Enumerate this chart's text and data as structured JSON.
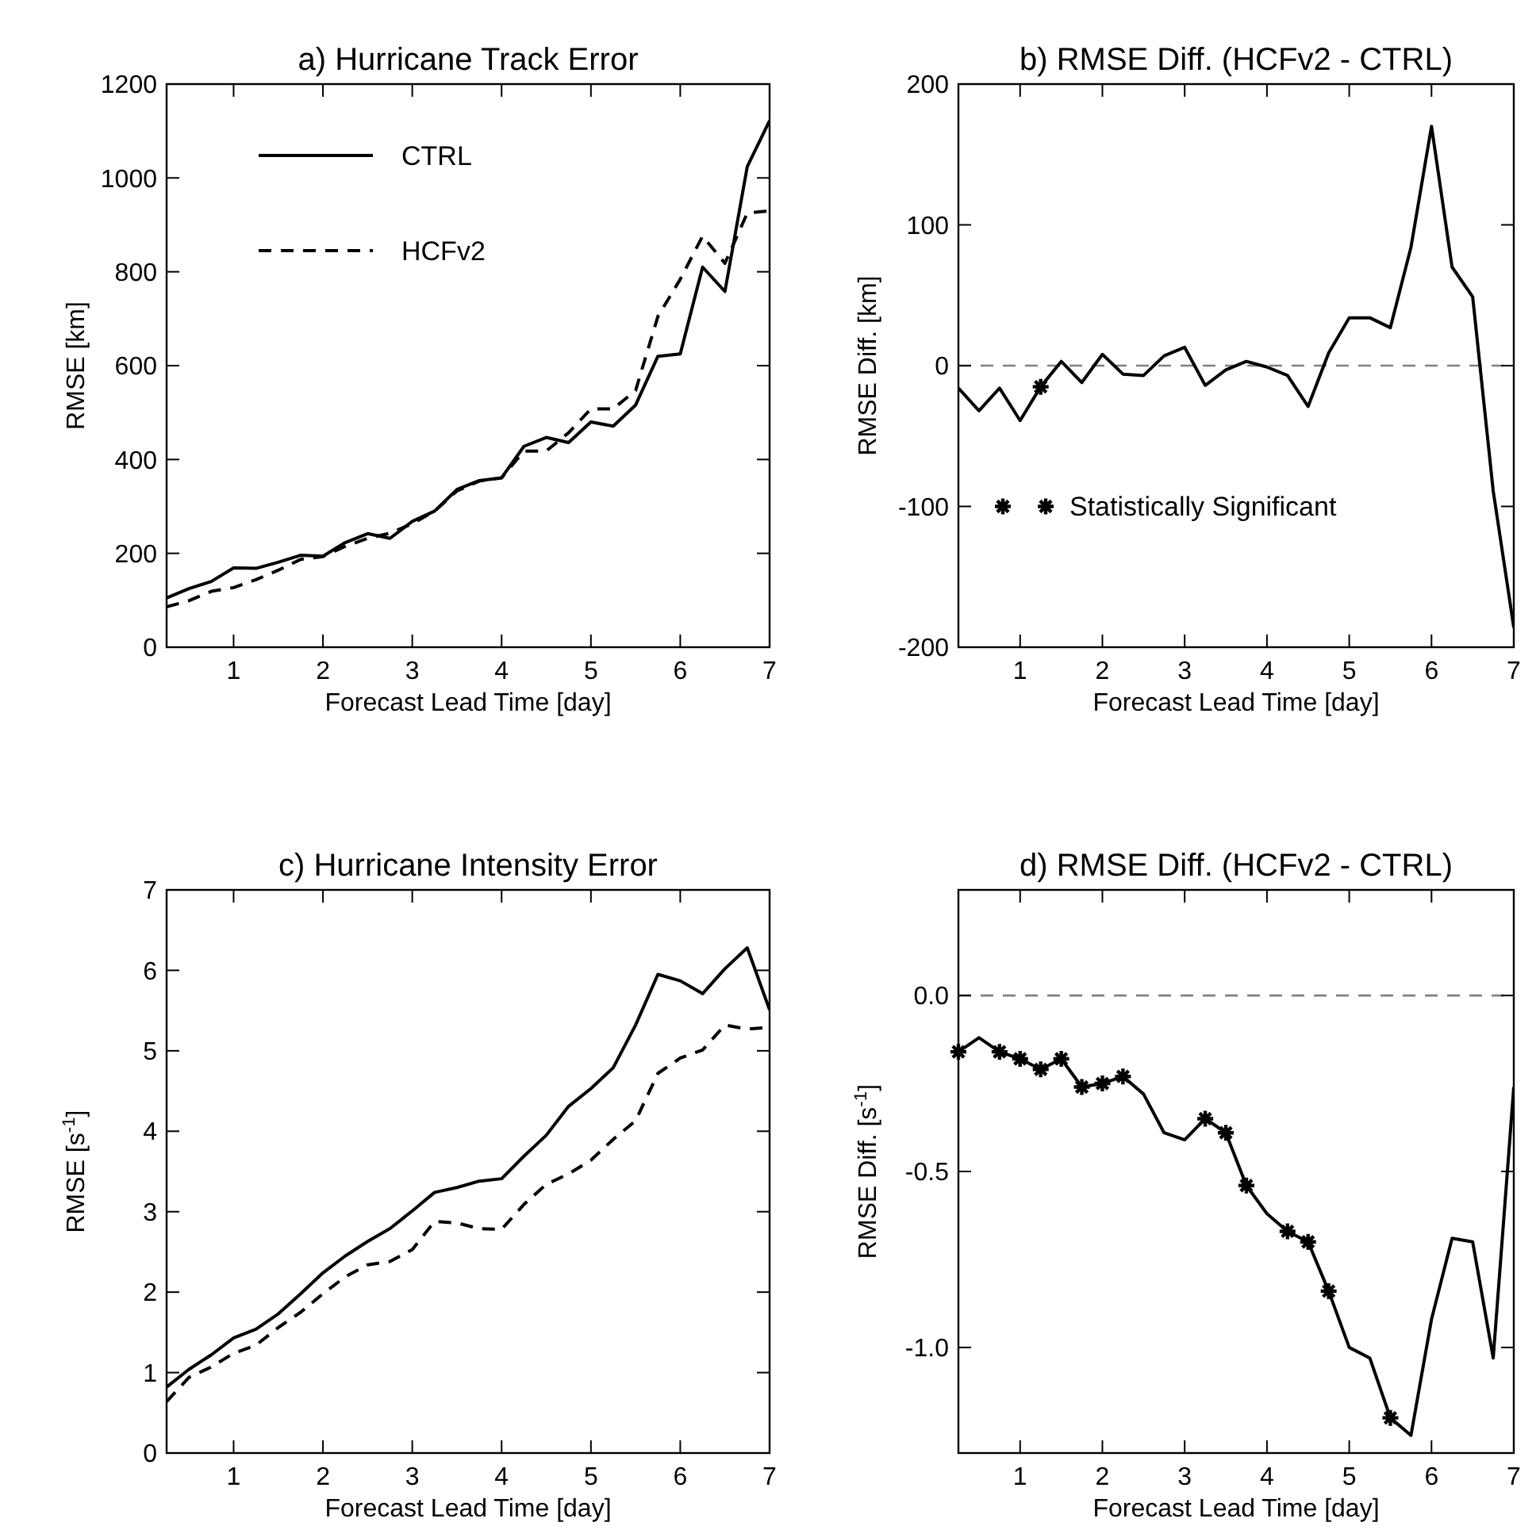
{
  "chart_data": [
    {
      "type": "line",
      "title": "a) Hurricane Track Error",
      "xlabel": "Forecast Lead Time [day]",
      "ylabel": "RMSE [km]",
      "xlim": [
        0.25,
        7
      ],
      "xticks": [
        1,
        2,
        3,
        4,
        5,
        6,
        7
      ],
      "ylim": [
        0,
        1200
      ],
      "yticks": [
        0,
        200,
        400,
        600,
        800,
        1000,
        1200
      ],
      "legend": "top left",
      "x": [
        0.25,
        0.5,
        0.75,
        1,
        1.25,
        1.5,
        1.75,
        2,
        2.25,
        2.5,
        2.75,
        3,
        3.25,
        3.5,
        3.75,
        4,
        4.25,
        4.5,
        4.75,
        5,
        5.25,
        5.5,
        5.75,
        6,
        6.25,
        6.5,
        6.75,
        7
      ],
      "series": [
        {
          "name": "CTRL",
          "color": "#000000",
          "line_style": "solid",
          "values": [
            105,
            125,
            140,
            169,
            168,
            181,
            196,
            194,
            223,
            242,
            232,
            268,
            290,
            336,
            355,
            361,
            428,
            447,
            436,
            480,
            471,
            516,
            620,
            625,
            810,
            758,
            1024,
            1122
          ]
        },
        {
          "name": "HCFv2",
          "color": "#000000",
          "line_style": "dashed",
          "values": [
            86,
            99,
            119,
            127,
            144,
            164,
            187,
            193,
            215,
            232,
            243,
            263,
            290,
            333,
            354,
            361,
            418,
            418,
            457,
            508,
            508,
            547,
            705,
            784,
            876,
            818,
            925,
            930
          ]
        }
      ]
    },
    {
      "type": "line",
      "title": "b) RMSE Diff. (HCFv2 - CTRL)",
      "xlabel": "Forecast Lead Time [day]",
      "ylabel": "RMSE Diff.  [km]",
      "xlim": [
        0.25,
        7
      ],
      "xticks": [
        1,
        2,
        3,
        4,
        5,
        6,
        7
      ],
      "ylim": [
        -200,
        200
      ],
      "yticks": [
        -200,
        -100,
        0,
        100,
        200
      ],
      "legend": "bottom left",
      "x": [
        0.25,
        0.5,
        0.75,
        1,
        1.25,
        1.5,
        1.75,
        2,
        2.25,
        2.5,
        2.75,
        3,
        3.25,
        3.5,
        3.75,
        4,
        4.25,
        4.5,
        4.75,
        5,
        5.25,
        5.5,
        5.75,
        6,
        6.25,
        6.5,
        6.75,
        7
      ],
      "ref_lines": [
        {
          "axis": "y",
          "value": 0,
          "color": "#808080",
          "line_style": "dashed"
        }
      ],
      "series": [
        {
          "color": "#000000",
          "line_style": "solid",
          "values": [
            -16,
            -32,
            -16,
            -39,
            -15,
            3,
            -12,
            8,
            -6,
            -7,
            7,
            13,
            -14,
            -3,
            3,
            -1,
            -7,
            -29,
            9,
            34,
            34,
            27,
            84,
            170,
            70,
            49,
            -89,
            -186
          ]
        },
        {
          "name": "Statistically Significant",
          "type": "scatter",
          "marker": "cross",
          "color": "#000000",
          "x": [
            1.25
          ],
          "values": [
            -15
          ]
        }
      ]
    },
    {
      "type": "line",
      "title": "c) Hurricane Intensity Error",
      "xlabel": "Forecast Lead Time [day]",
      "ylabel": "RMSE [s$^{-1}$]",
      "xlim": [
        0.25,
        7
      ],
      "xticks": [
        1,
        2,
        3,
        4,
        5,
        6,
        7
      ],
      "ylim": [
        0,
        7
      ],
      "yticks": [
        0,
        1,
        2,
        3,
        4,
        5,
        6,
        7
      ],
      "x": [
        0.25,
        0.5,
        0.75,
        1,
        1.25,
        1.5,
        1.75,
        2,
        2.25,
        2.5,
        2.75,
        3,
        3.25,
        3.5,
        3.75,
        4,
        4.25,
        4.5,
        4.75,
        5,
        5.25,
        5.5,
        5.75,
        6,
        6.25,
        6.5,
        6.75,
        7
      ],
      "series": [
        {
          "color": "#000000",
          "line_style": "solid",
          "values": [
            0.82,
            1.04,
            1.22,
            1.43,
            1.54,
            1.73,
            1.98,
            2.24,
            2.45,
            2.63,
            2.79,
            3.01,
            3.24,
            3.3,
            3.38,
            3.41,
            3.69,
            3.95,
            4.31,
            4.53,
            4.79,
            5.32,
            5.95,
            5.87,
            5.71,
            6.02,
            6.28,
            5.51
          ]
        },
        {
          "color": "#000000",
          "line_style": "dashed",
          "values": [
            0.64,
            0.94,
            1.07,
            1.24,
            1.34,
            1.56,
            1.75,
            1.98,
            2.19,
            2.34,
            2.38,
            2.53,
            2.88,
            2.86,
            2.79,
            2.78,
            3.09,
            3.34,
            3.47,
            3.64,
            3.9,
            4.13,
            4.72,
            4.91,
            5.01,
            5.32,
            5.27,
            5.29
          ]
        }
      ]
    },
    {
      "type": "line",
      "title": "d) RMSE Diff. (HCFv2 - CTRL)",
      "xlabel": "Forecast Lead Time [day]",
      "ylabel": "RMSE Diff. [s$^{-1}$]",
      "xlim": [
        0.25,
        7
      ],
      "xticks": [
        1,
        2,
        3,
        4,
        5,
        6,
        7
      ],
      "ylim": [
        -1.3,
        0.3
      ],
      "yticks": [
        {
          "value": -1,
          "label": "-1.0"
        },
        {
          "value": -0.5,
          "label": "-0.5"
        },
        {
          "value": 0,
          "label": "0.0"
        }
      ],
      "x": [
        0.25,
        0.5,
        0.75,
        1,
        1.25,
        1.5,
        1.75,
        2,
        2.25,
        2.5,
        2.75,
        3,
        3.25,
        3.5,
        3.75,
        4,
        4.25,
        4.5,
        4.75,
        5,
        5.25,
        5.5,
        5.75,
        6,
        6.25,
        6.5,
        6.75,
        7
      ],
      "ref_lines": [
        {
          "axis": "y",
          "value": 0,
          "color": "#808080",
          "line_style": "dashed"
        }
      ],
      "series": [
        {
          "color": "#000000",
          "line_style": "solid",
          "values": [
            -0.16,
            -0.12,
            -0.16,
            -0.18,
            -0.21,
            -0.18,
            -0.26,
            -0.25,
            -0.23,
            -0.28,
            -0.39,
            -0.41,
            -0.35,
            -0.39,
            -0.54,
            -0.62,
            -0.67,
            -0.7,
            -0.84,
            -1.0,
            -1.03,
            -1.2,
            -1.25,
            -0.92,
            -0.69,
            -0.7,
            -1.03,
            -0.26
          ]
        },
        {
          "type": "scatter",
          "marker": "cross",
          "color": "#000000",
          "x": [
            0.25,
            0.75,
            1,
            1.25,
            1.5,
            1.75,
            2,
            2.25,
            3.25,
            3.5,
            3.75,
            4.25,
            4.5,
            4.75,
            5.5
          ],
          "values": [
            -0.16,
            -0.16,
            -0.18,
            -0.21,
            -0.18,
            -0.26,
            -0.25,
            -0.23,
            -0.35,
            -0.39,
            -0.54,
            -0.67,
            -0.7,
            -0.84,
            -1.2
          ]
        }
      ]
    }
  ]
}
